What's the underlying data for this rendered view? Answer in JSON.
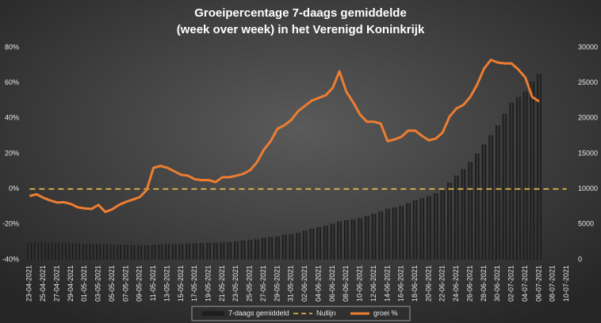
{
  "chart_data": {
    "type": "bar_line",
    "title": [
      "Groeipercentage 7-daags gemiddelde",
      "(week over week) in het Verenigd Koninkrijk"
    ],
    "categories": [
      "23-04-2021",
      null,
      "25-04-2021",
      null,
      "27-04-2021",
      null,
      "29-04-2021",
      null,
      "01-05-2021",
      null,
      "03-05-2021",
      null,
      "05-05-2021",
      null,
      "07-05-2021",
      null,
      "09-05-2021",
      null,
      "11-05-2021",
      null,
      "13-05-2021",
      null,
      "15-05-2021",
      null,
      "17-05-2021",
      null,
      "19-05-2021",
      null,
      "21-05-2021",
      null,
      "23-05-2021",
      null,
      "25-05-2021",
      null,
      "27-05-2021",
      null,
      "29-05-2021",
      null,
      "31-05-2021",
      null,
      "02-06-2021",
      null,
      "04-06-2021",
      null,
      "06-06-2021",
      null,
      "08-06-2021",
      null,
      "10-06-2021",
      null,
      "12-06-2021",
      null,
      "14-06-2021",
      null,
      "16-06-2021",
      null,
      "18-06-2021",
      null,
      "20-06-2021",
      null,
      "22-06-2021",
      null,
      "24-06-2021",
      null,
      "26-06-2021",
      null,
      "28-06-2021",
      null,
      "30-06-2021",
      null,
      "02-07-2021",
      null,
      "04-07-2021",
      null,
      "06-07-2021",
      null,
      "08-07-2021",
      null,
      "10-07-2021"
    ],
    "series": [
      {
        "name": "7-daags gemiddeld",
        "kind": "bar",
        "axis": "y2",
        "color": "#1e1e1e",
        "values": [
          2400,
          2450,
          2450,
          2400,
          2350,
          2350,
          2300,
          2300,
          2250,
          2250,
          2200,
          2200,
          2150,
          2100,
          2100,
          2050,
          2050,
          2050,
          2100,
          2150,
          2200,
          2200,
          2250,
          2300,
          2300,
          2350,
          2400,
          2400,
          2450,
          2500,
          2600,
          2700,
          2800,
          2900,
          3100,
          3200,
          3300,
          3550,
          3650,
          3800,
          4100,
          4400,
          4600,
          4800,
          5100,
          5400,
          5600,
          5700,
          5900,
          6200,
          6500,
          6800,
          7200,
          7400,
          7600,
          8000,
          8400,
          8700,
          9000,
          9400,
          9850,
          10900,
          11900,
          12800,
          13800,
          15000,
          16300,
          17600,
          19000,
          20600,
          22200,
          23000,
          23800,
          25200,
          26300,
          null,
          null,
          null,
          null
        ]
      },
      {
        "name": "Nullijn",
        "kind": "dashed",
        "color": "#f2c14e",
        "values": [
          0,
          0,
          0,
          0,
          0,
          0,
          0,
          0,
          0,
          0,
          0,
          0,
          0,
          0,
          0,
          0,
          0,
          0,
          0,
          0,
          0,
          0,
          0,
          0,
          0,
          0,
          0,
          0,
          0,
          0,
          0,
          0,
          0,
          0,
          0,
          0,
          0,
          0,
          0,
          0,
          0,
          0,
          0,
          0,
          0,
          0,
          0,
          0,
          0,
          0,
          0,
          0,
          0,
          0,
          0,
          0,
          0,
          0,
          0,
          0,
          0,
          0,
          0,
          0,
          0,
          0,
          0,
          0,
          0,
          0,
          0,
          0,
          0,
          0,
          0,
          0,
          0,
          0,
          0
        ]
      },
      {
        "name": "groei %",
        "kind": "line",
        "color": "#ed7d31",
        "values": [
          -4,
          -3,
          -5,
          -6.5,
          -7.7,
          -7.5,
          -8.5,
          -10.4,
          -11,
          -11.3,
          -9,
          -13,
          -11.5,
          -9,
          -7.3,
          -6,
          -4.6,
          -0.6,
          12,
          13,
          12,
          10,
          8,
          7.5,
          5.5,
          5,
          5,
          3.9,
          6.6,
          6.6,
          7.5,
          8.5,
          10.5,
          15,
          22,
          27,
          34,
          36,
          39,
          44,
          47,
          50,
          51.5,
          53,
          57,
          66.5,
          55,
          49,
          42,
          38,
          38,
          37,
          27,
          28,
          29.5,
          33,
          33,
          30,
          27.5,
          28.5,
          32,
          41,
          45.5,
          47.5,
          52,
          59,
          68,
          73,
          71.5,
          71,
          71,
          67.5,
          63,
          52,
          49.5,
          null,
          null,
          null,
          null
        ]
      }
    ],
    "ylim": [
      -40,
      80
    ],
    "yticks": [
      {
        "value": -40,
        "label": "-40%"
      },
      {
        "value": -20,
        "label": "-20%"
      },
      {
        "value": 0,
        "label": "0%"
      },
      {
        "value": 20,
        "label": "20%"
      },
      {
        "value": 40,
        "label": "40%"
      },
      {
        "value": 60,
        "label": "60%"
      },
      {
        "value": 80,
        "label": "80%"
      }
    ],
    "y2lim": [
      0,
      30000
    ],
    "y2ticks": [
      0,
      5000,
      10000,
      15000,
      20000,
      25000,
      30000
    ],
    "grid": false,
    "legend": "bottom"
  }
}
